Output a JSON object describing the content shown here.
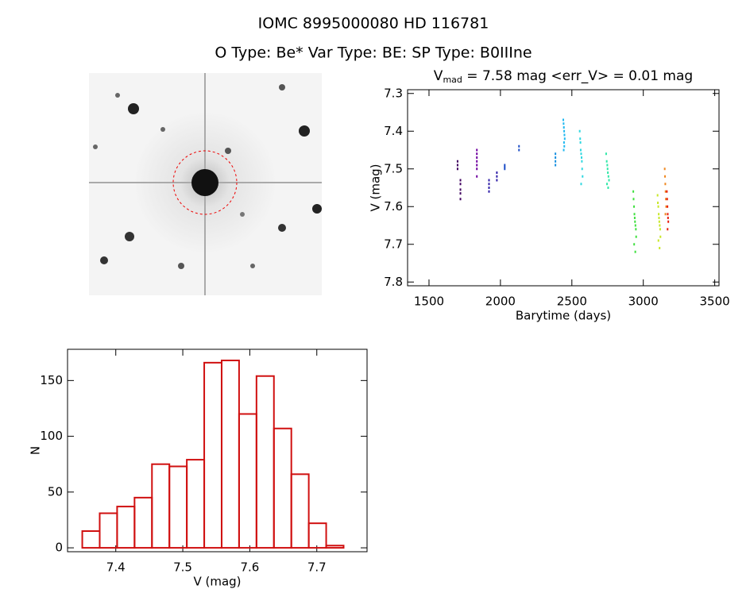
{
  "header": {
    "title": "IOMC 8995000080    HD 116781",
    "subtitle": "O Type: Be*  Var Type: BE:  SP Type: B0IIIne"
  },
  "chart_data": [
    {
      "type": "scatter",
      "title": {
        "main": "V",
        "sub": "mad",
        "rest": " = 7.58 mag <err_V> = 0.01 mag"
      },
      "x_label": "Barytime (days)",
      "y_label": "V (mag)",
      "xlim": [
        1350,
        3530
      ],
      "xticks": [
        1500,
        2000,
        2500,
        3000,
        3500
      ],
      "ylim": [
        7.81,
        7.29
      ],
      "yticks": [
        7.3,
        7.4,
        7.5,
        7.6,
        7.7,
        7.8
      ],
      "series": [
        {
          "name": "s1",
          "color": "#400060",
          "x": [
            1700,
            1700,
            1700,
            1720,
            1720,
            1720,
            1720,
            1720
          ],
          "values": [
            7.48,
            7.49,
            7.5,
            7.53,
            7.54,
            7.555,
            7.565,
            7.58
          ]
        },
        {
          "name": "s2",
          "color": "#7000a0",
          "x": [
            1835,
            1835,
            1835,
            1835,
            1835,
            1835,
            1835
          ],
          "values": [
            7.45,
            7.46,
            7.47,
            7.48,
            7.49,
            7.5,
            7.52
          ]
        },
        {
          "name": "s3",
          "color": "#3020a8",
          "x": [
            1920,
            1920,
            1920,
            1920,
            1975,
            1975,
            1975
          ],
          "values": [
            7.53,
            7.54,
            7.55,
            7.56,
            7.51,
            7.52,
            7.53
          ]
        },
        {
          "name": "s4",
          "color": "#2050c8",
          "x": [
            2030,
            2030,
            2030,
            2130,
            2130
          ],
          "values": [
            7.49,
            7.495,
            7.5,
            7.44,
            7.45
          ]
        },
        {
          "name": "s5",
          "color": "#1890e0",
          "x": [
            2385,
            2385,
            2385,
            2385
          ],
          "values": [
            7.46,
            7.47,
            7.48,
            7.49
          ]
        },
        {
          "name": "s6",
          "color": "#20b8f0",
          "x": [
            2440,
            2442,
            2444,
            2446,
            2448,
            2450,
            2445,
            2447,
            2443
          ],
          "values": [
            7.37,
            7.38,
            7.39,
            7.4,
            7.41,
            7.42,
            7.43,
            7.44,
            7.45
          ]
        },
        {
          "name": "s7",
          "color": "#30d8e0",
          "x": [
            2555,
            2558,
            2560,
            2562,
            2565,
            2568,
            2570,
            2572,
            2575,
            2565
          ],
          "values": [
            7.4,
            7.42,
            7.43,
            7.45,
            7.46,
            7.47,
            7.48,
            7.5,
            7.52,
            7.54
          ]
        },
        {
          "name": "s8",
          "color": "#30e8a8",
          "x": [
            2740,
            2744,
            2748,
            2750,
            2752,
            2756,
            2760,
            2746,
            2754
          ],
          "values": [
            7.46,
            7.48,
            7.49,
            7.5,
            7.51,
            7.52,
            7.53,
            7.54,
            7.55
          ]
        },
        {
          "name": "s9",
          "color": "#40e040",
          "x": [
            2930,
            2932,
            2935,
            2938,
            2940,
            2942,
            2945,
            2948,
            2950,
            2936,
            2944
          ],
          "values": [
            7.56,
            7.58,
            7.6,
            7.62,
            7.63,
            7.64,
            7.65,
            7.66,
            7.68,
            7.7,
            7.72
          ]
        },
        {
          "name": "s10",
          "color": "#c8e828",
          "x": [
            3100,
            3102,
            3105,
            3108,
            3110,
            3112,
            3115,
            3118,
            3120,
            3106,
            3114
          ],
          "values": [
            7.57,
            7.59,
            7.6,
            7.62,
            7.63,
            7.64,
            7.65,
            7.66,
            7.68,
            7.69,
            7.71
          ]
        },
        {
          "name": "s11",
          "color": "#f08820",
          "x": [
            3150,
            3152,
            3154,
            3156,
            3158,
            3160,
            3155
          ],
          "values": [
            7.5,
            7.52,
            7.54,
            7.56,
            7.58,
            7.6,
            7.62
          ]
        },
        {
          "name": "s12",
          "color": "#e82010",
          "x": [
            3165,
            3167,
            3169,
            3171,
            3173,
            3175,
            3170
          ],
          "values": [
            7.56,
            7.58,
            7.6,
            7.62,
            7.63,
            7.64,
            7.66
          ]
        }
      ]
    },
    {
      "type": "histogram",
      "x_label": "V (mag)",
      "y_label": "N",
      "color": "#d01010",
      "xlim": [
        7.328,
        7.775
      ],
      "xticks": [
        7.4,
        7.5,
        7.6,
        7.7
      ],
      "ylim": [
        -3.5,
        178
      ],
      "yticks": [
        0,
        50,
        100,
        150
      ],
      "bins": [
        7.35,
        7.376,
        7.402,
        7.428,
        7.454,
        7.48,
        7.506,
        7.532,
        7.558,
        7.584,
        7.61,
        7.636,
        7.662,
        7.688,
        7.714,
        7.74
      ],
      "values": [
        15,
        31,
        37,
        45,
        75,
        73,
        79,
        166,
        168,
        120,
        154,
        107,
        66,
        22,
        2
      ]
    }
  ]
}
